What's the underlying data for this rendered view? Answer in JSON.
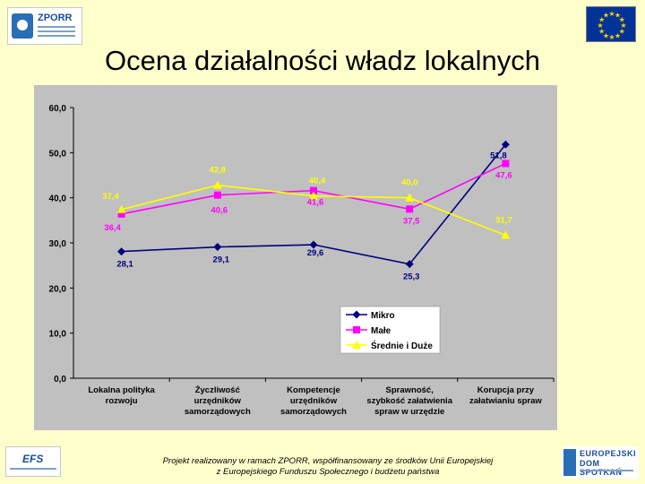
{
  "header": {
    "title": "Ocena działalności władz lokalnych",
    "logo_left_text": "ZPORR"
  },
  "footer": {
    "line1": "Projekt realizowany w ramach ZPORR, współfinansowany ze środków Unii Europejskiej",
    "line2": "z Europejskiego Funduszu Społecznego i budżetu państwa",
    "logo_left_text": "EFS",
    "logo_right_line1": "EUROPEJSKI",
    "logo_right_line2": "DOM SPOTKAŃ"
  },
  "colors": {
    "background": "#ffffcc",
    "plot_area": "#c0c0c0",
    "mikro": "#000080",
    "male": "#ff00ff",
    "srednie": "#ffff00",
    "eu_blue": "#003399",
    "eu_star": "#ffcc00"
  },
  "chart_data": {
    "type": "line",
    "title": "",
    "xlabel": "",
    "ylabel": "",
    "ylim": [
      0,
      60
    ],
    "yticks": [
      "0,0",
      "10,0",
      "20,0",
      "30,0",
      "40,0",
      "50,0",
      "60,0"
    ],
    "grid": false,
    "legend_position": "bottom-right",
    "categories": [
      [
        "Lokalna polityka",
        "rozwoju"
      ],
      [
        "Życzliwość",
        "urzędników",
        "samorządowych"
      ],
      [
        "Kompetencje",
        "urzędników",
        "samorządowych"
      ],
      [
        "Sprawność,",
        "szybkość załatwienia",
        "spraw w urzędzie"
      ],
      [
        "Korupcja przy",
        "załatwianiu spraw"
      ]
    ],
    "series": [
      {
        "name": "Mikro",
        "color": "#000080",
        "marker": "diamond",
        "values": [
          28.1,
          29.1,
          29.6,
          25.3,
          51.8
        ],
        "labels": [
          "28,1",
          "29,1",
          "29,6",
          "25,3",
          "51,8"
        ]
      },
      {
        "name": "Małe",
        "color": "#ff00ff",
        "marker": "square",
        "values": [
          36.4,
          40.6,
          41.6,
          37.5,
          47.6
        ],
        "labels": [
          "36,4",
          "40,6",
          "41,6",
          "37,5",
          "47,6"
        ]
      },
      {
        "name": "Średnie i Duże",
        "color": "#ffff00",
        "marker": "triangle",
        "values": [
          37.4,
          42.8,
          40.4,
          40.0,
          31.7
        ],
        "labels": [
          "37,4",
          "42,8",
          "40,4",
          "40,0",
          "31,7"
        ]
      }
    ]
  }
}
